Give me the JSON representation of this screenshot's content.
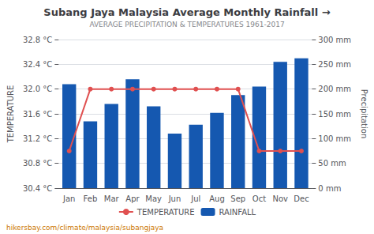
{
  "chart_data": {
    "type": "bar",
    "title": "Subang Jaya Malaysia Average Monthly Rainfall →",
    "subtitle": "AVERAGE PRECIPITATION & TEMPERATURES 1961-2017",
    "ylabel": "TEMPERATURE",
    "y2label": "Precipitation",
    "annotations": [
      "hikersbay.com/climate/malaysia/subangjaya"
    ],
    "categories": [
      "Jan",
      "Feb",
      "Mar",
      "Apr",
      "May",
      "Jun",
      "Jul",
      "Aug",
      "Sep",
      "Oct",
      "Nov",
      "Dec"
    ],
    "series": [
      {
        "name": "TEMPERATURE",
        "type": "line",
        "color": "#e05050",
        "marker": "circle",
        "values": [
          31.0,
          32.0,
          32.0,
          32.0,
          32.0,
          32.0,
          32.0,
          32.0,
          32.0,
          31.0,
          31.0,
          31.0
        ]
      },
      {
        "name": "RAINFALL",
        "type": "bar",
        "axis": "y2",
        "color": "#1558b0",
        "values": [
          210,
          135,
          170,
          220,
          165,
          110,
          128,
          152,
          188,
          205,
          255,
          262
        ]
      }
    ],
    "ylim": [
      30.4,
      32.8
    ],
    "yticks": [
      {
        "value": 30.4,
        "label": "30.4 °C"
      },
      {
        "value": 30.8,
        "label": "30.8 °C"
      },
      {
        "value": 31.2,
        "label": "31.2 °C"
      },
      {
        "value": 31.6,
        "label": "31.6 °C"
      },
      {
        "value": 32.0,
        "label": "32.0 °C"
      },
      {
        "value": 32.4,
        "label": "32.4 °C"
      },
      {
        "value": 32.8,
        "label": "32.8 °C"
      }
    ],
    "y2lim": [
      0,
      300
    ],
    "y2ticks": [
      {
        "value": 0,
        "label": "0 mm"
      },
      {
        "value": 50,
        "label": "50 mm"
      },
      {
        "value": 100,
        "label": "100 mm"
      },
      {
        "value": 150,
        "label": "150 mm"
      },
      {
        "value": 200,
        "label": "200 mm"
      },
      {
        "value": 250,
        "label": "250 mm"
      },
      {
        "value": 300,
        "label": "300 mm"
      }
    ],
    "grid": true,
    "legend": "bottom"
  }
}
